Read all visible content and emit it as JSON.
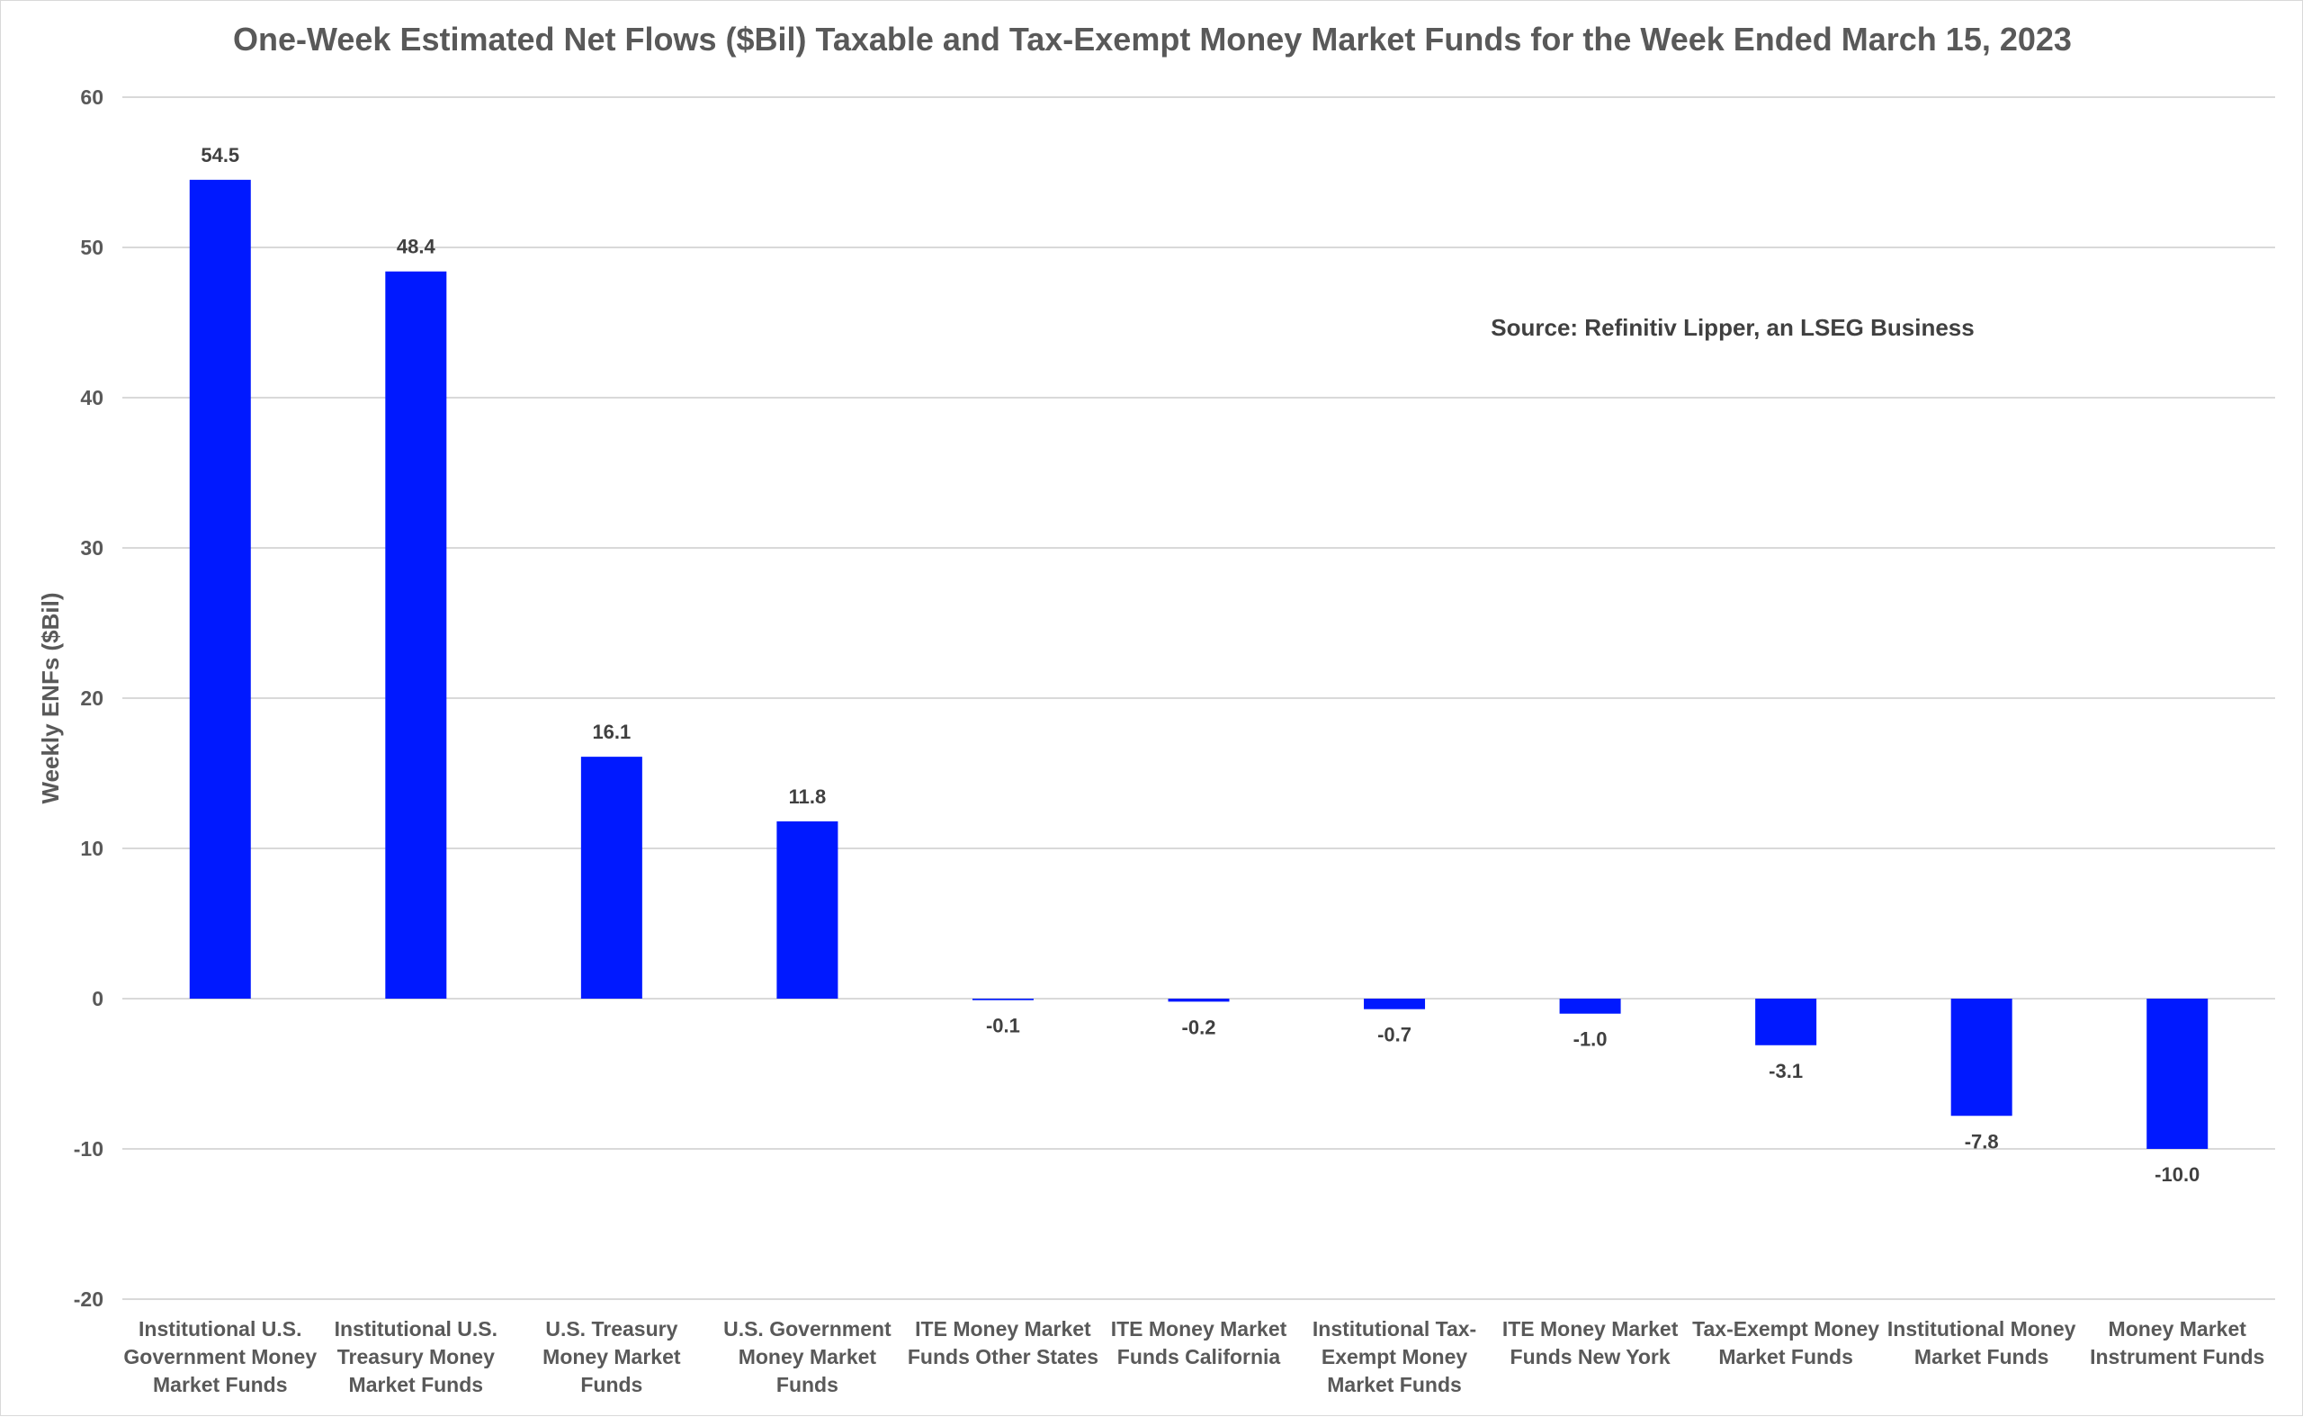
{
  "chart_data": {
    "type": "bar",
    "title": "One-Week Estimated Net Flows ($Bil) Taxable and Tax-Exempt Money Market Funds for the Week Ended March 15, 2023",
    "xlabel": "",
    "ylabel": "Weekly ENFs ($Bil)",
    "ylim": [
      -20,
      60
    ],
    "yticks": [
      -20,
      -10,
      0,
      10,
      20,
      30,
      40,
      50,
      60
    ],
    "grid": true,
    "legend": "none",
    "bar_color": "#0019ff",
    "annotation": "Source: Refinitiv Lipper, an LSEG Business",
    "categories": [
      [
        "Institutional U.S.",
        "Government Money",
        "Market Funds"
      ],
      [
        "Institutional U.S.",
        "Treasury Money",
        "Market Funds"
      ],
      [
        "U.S. Treasury",
        "Money Market",
        "Funds"
      ],
      [
        "U.S. Government",
        "Money Market",
        "Funds"
      ],
      [
        "ITE Money Market",
        "Funds Other States"
      ],
      [
        "ITE Money Market",
        "Funds California"
      ],
      [
        "Institutional Tax-",
        "Exempt Money",
        "Market Funds"
      ],
      [
        "ITE Money Market",
        "Funds New York"
      ],
      [
        "Tax-Exempt Money",
        "Market Funds"
      ],
      [
        "Institutional Money",
        "Market Funds"
      ],
      [
        "Money Market",
        "Instrument Funds"
      ]
    ],
    "values": [
      54.5,
      48.4,
      16.1,
      11.8,
      -0.1,
      -0.2,
      -0.7,
      -1.0,
      -3.1,
      -7.8,
      -10.0
    ],
    "data_labels": [
      "54.5",
      "48.4",
      "16.1",
      "11.8",
      "-0.1",
      "-0.2",
      "-0.7",
      "-1.0",
      "-3.1",
      "-7.8",
      "-10.0"
    ]
  }
}
